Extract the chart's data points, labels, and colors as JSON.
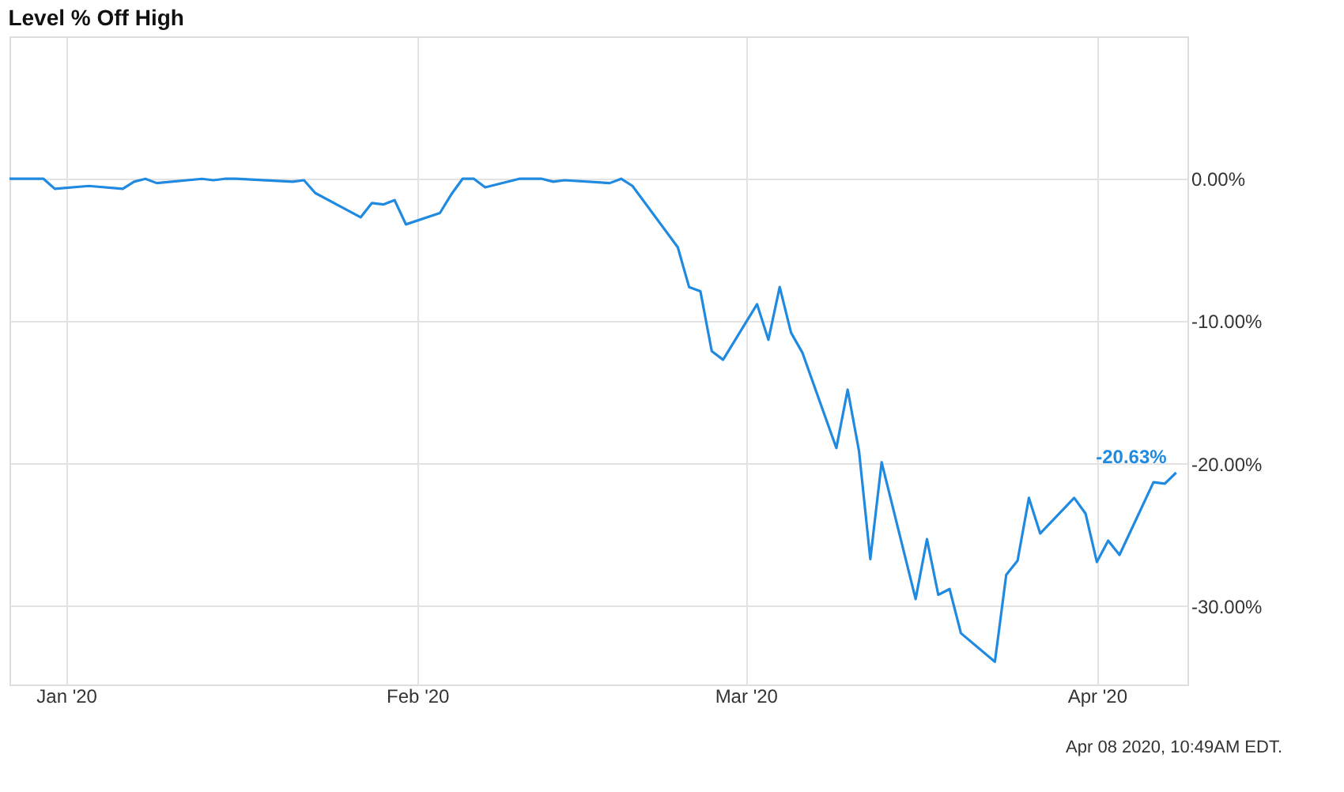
{
  "chart_data": {
    "type": "line",
    "title": "Level % Off High",
    "x": [
      "2019-12-27",
      "2019-12-30",
      "2019-12-31",
      "2020-01-03",
      "2020-01-06",
      "2020-01-07",
      "2020-01-08",
      "2020-01-09",
      "2020-01-13",
      "2020-01-14",
      "2020-01-15",
      "2020-01-16",
      "2020-01-21",
      "2020-01-22",
      "2020-01-23",
      "2020-01-27",
      "2020-01-28",
      "2020-01-29",
      "2020-01-30",
      "2020-01-31",
      "2020-02-03",
      "2020-02-04",
      "2020-02-05",
      "2020-02-06",
      "2020-02-07",
      "2020-02-10",
      "2020-02-12",
      "2020-02-13",
      "2020-02-14",
      "2020-02-18",
      "2020-02-19",
      "2020-02-20",
      "2020-02-24",
      "2020-02-25",
      "2020-02-26",
      "2020-02-27",
      "2020-02-28",
      "2020-03-02",
      "2020-03-03",
      "2020-03-04",
      "2020-03-05",
      "2020-03-06",
      "2020-03-09",
      "2020-03-10",
      "2020-03-11",
      "2020-03-12",
      "2020-03-13",
      "2020-03-16",
      "2020-03-17",
      "2020-03-18",
      "2020-03-19",
      "2020-03-20",
      "2020-03-23",
      "2020-03-24",
      "2020-03-25",
      "2020-03-26",
      "2020-03-27",
      "2020-03-30",
      "2020-03-31",
      "2020-04-01",
      "2020-04-02",
      "2020-04-03",
      "2020-04-06",
      "2020-04-07",
      "2020-04-08"
    ],
    "series": [
      {
        "color": "#1f8ae0",
        "values": [
          0,
          0,
          -0.7,
          -0.5,
          -0.7,
          -0.2,
          0,
          -0.3,
          0,
          -0.1,
          0,
          0,
          -0.2,
          -0.1,
          -1.0,
          -2.7,
          -1.7,
          -1.8,
          -1.5,
          -3.2,
          -2.4,
          -1.1,
          0,
          0,
          -0.6,
          0,
          0,
          -0.2,
          -0.1,
          -0.3,
          0,
          -0.5,
          -4.8,
          -7.6,
          -7.9,
          -12.1,
          -12.7,
          -8.8,
          -11.3,
          -7.6,
          -10.8,
          -12.2,
          -18.9,
          -14.8,
          -19.1,
          -26.7,
          -19.9,
          -29.5,
          -25.3,
          -29.2,
          -28.8,
          -31.9,
          -33.9,
          -27.8,
          -26.8,
          -22.4,
          -24.9,
          -22.4,
          -23.5,
          -26.9,
          -25.4,
          -26.4,
          -21.3,
          -21.4,
          -20.63
        ]
      }
    ],
    "xlim": [
      "2019-12-27",
      "2020-04-09"
    ],
    "xticks": [
      {
        "value": "2020-01-01",
        "label": "Jan '20"
      },
      {
        "value": "2020-02-01",
        "label": "Feb '20"
      },
      {
        "value": "2020-03-01",
        "label": "Mar '20"
      },
      {
        "value": "2020-04-01",
        "label": "Apr '20"
      }
    ],
    "ylim": [
      -35.5,
      10
    ],
    "yticks": [
      {
        "value": 0,
        "label": "0.00%"
      },
      {
        "value": -10,
        "label": "-10.00%"
      },
      {
        "value": -20,
        "label": "-20.00%"
      },
      {
        "value": -30,
        "label": "-30.00%"
      }
    ],
    "grid": true,
    "marker": "none",
    "line_style": "solid",
    "annotations": [
      {
        "text": "-20.63%",
        "x": "2020-04-08",
        "y": -20.63
      },
      "Apr 08 2020, 10:49AM EDT."
    ]
  }
}
